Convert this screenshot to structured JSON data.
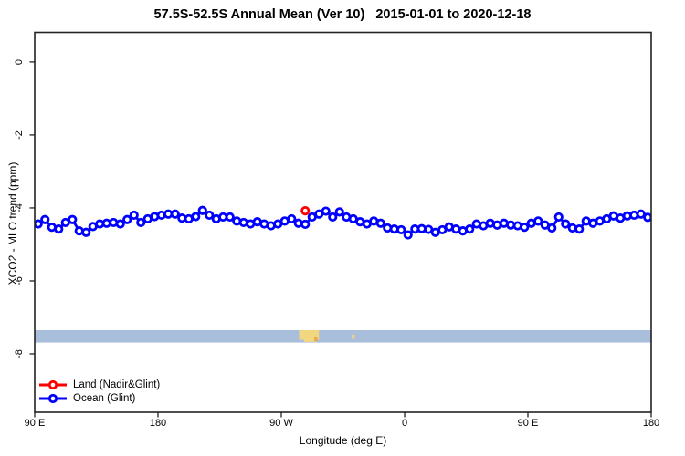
{
  "header": {
    "title": "57.5S-52.5S Annual Mean (Ver 10)   2015-01-01 to 2020-12-18"
  },
  "chart_data": {
    "type": "line",
    "title": "57.5S-52.5S Annual Mean (Ver 10)   2015-01-01 to 2020-12-18",
    "xlabel": "Longitude (deg E)",
    "ylabel": "XCO2 - MLO trend (ppm)",
    "xlim": [
      90,
      540
    ],
    "ylim": [
      -9.6,
      0.81
    ],
    "grid": false,
    "x_ticks": [
      {
        "value": 90,
        "label": "90 E"
      },
      {
        "value": 180,
        "label": "180"
      },
      {
        "value": 270,
        "label": "90 W"
      },
      {
        "value": 360,
        "label": "0"
      },
      {
        "value": 450,
        "label": "90 E"
      },
      {
        "value": 540,
        "label": "180"
      }
    ],
    "y_ticks": [
      {
        "value": 0,
        "label": "0"
      },
      {
        "value": -2,
        "label": "-2"
      },
      {
        "value": -4,
        "label": "-4"
      },
      {
        "value": -6,
        "label": "-6"
      },
      {
        "value": -8,
        "label": "-8"
      }
    ],
    "legend": {
      "position": "bottom-left",
      "items": [
        {
          "label": "Land (Nadir&Glint)",
          "color": "#ff0000"
        },
        {
          "label": "Ocean (Glint)",
          "color": "#0000ff"
        }
      ]
    },
    "series": [
      {
        "name": "Land (Nadir&Glint)",
        "color": "#ff0000",
        "marker": "open-circle",
        "x": [
          287.5
        ],
        "values": [
          -4.08
        ]
      },
      {
        "name": "Ocean (Glint)",
        "color": "#0000ff",
        "marker": "open-circle",
        "x": [
          92.5,
          97.5,
          102.5,
          107.5,
          112.5,
          117.5,
          122.5,
          127.5,
          132.5,
          137.5,
          142.5,
          147.5,
          152.5,
          157.5,
          162.5,
          167.5,
          172.5,
          177.5,
          182.5,
          187.5,
          192.5,
          197.5,
          202.5,
          207.5,
          212.5,
          217.5,
          222.5,
          227.5,
          232.5,
          237.5,
          242.5,
          247.5,
          252.5,
          257.5,
          262.5,
          267.5,
          272.5,
          277.5,
          282.5,
          287.5,
          292.5,
          297.5,
          302.5,
          307.5,
          312.5,
          317.5,
          322.5,
          327.5,
          332.5,
          337.5,
          342.5,
          347.5,
          352.5,
          357.5,
          362.5,
          367.5,
          372.5,
          377.5,
          382.5,
          387.5,
          392.5,
          397.5,
          402.5,
          407.5,
          412.5,
          417.5,
          422.5,
          427.5,
          432.5,
          437.5,
          442.5,
          447.5,
          452.5,
          457.5,
          462.5,
          467.5,
          472.5,
          477.5,
          482.5,
          487.5,
          492.5,
          497.5,
          502.5,
          507.5,
          512.5,
          517.5,
          522.5,
          527.5,
          532.5,
          537.5
        ],
        "values": [
          -4.44,
          -4.32,
          -4.53,
          -4.58,
          -4.4,
          -4.32,
          -4.63,
          -4.67,
          -4.51,
          -4.44,
          -4.42,
          -4.4,
          -4.44,
          -4.32,
          -4.2,
          -4.4,
          -4.3,
          -4.24,
          -4.2,
          -4.17,
          -4.17,
          -4.28,
          -4.3,
          -4.24,
          -4.07,
          -4.2,
          -4.3,
          -4.25,
          -4.25,
          -4.36,
          -4.4,
          -4.44,
          -4.38,
          -4.44,
          -4.49,
          -4.44,
          -4.36,
          -4.3,
          -4.42,
          -4.45,
          -4.25,
          -4.17,
          -4.09,
          -4.25,
          -4.11,
          -4.25,
          -4.3,
          -4.38,
          -4.44,
          -4.36,
          -4.42,
          -4.55,
          -4.58,
          -4.6,
          -4.74,
          -4.58,
          -4.57,
          -4.59,
          -4.67,
          -4.6,
          -4.52,
          -4.58,
          -4.63,
          -4.58,
          -4.44,
          -4.49,
          -4.42,
          -4.47,
          -4.42,
          -4.47,
          -4.49,
          -4.53,
          -4.42,
          -4.36,
          -4.47,
          -4.55,
          -4.25,
          -4.44,
          -4.55,
          -4.58,
          -4.36,
          -4.42,
          -4.36,
          -4.3,
          -4.22,
          -4.28,
          -4.22,
          -4.2,
          -4.17,
          -4.26
        ]
      }
    ],
    "land_ocean_band": {
      "description": "land/ocean indicator strip across all longitudes",
      "ocean_color": "#a9bedb",
      "land_color": "#f1d77f",
      "land_accent_color": "#e7ab50",
      "y_range_ppm": [
        -7.35,
        -7.69
      ],
      "land_segments": [
        {
          "lon": [
            283.0,
            297.5
          ],
          "band_frac": [
            0.0,
            0.78
          ]
        },
        {
          "lon": [
            286.5,
            295.5
          ],
          "band_frac": [
            0.3,
            0.95
          ]
        },
        {
          "lon": [
            321.5,
            323.5
          ],
          "band_frac": [
            0.35,
            0.7
          ]
        }
      ],
      "land_accents": [
        {
          "lon": [
            294.0,
            296.5
          ],
          "band_frac": [
            0.55,
            0.9
          ]
        }
      ]
    }
  }
}
